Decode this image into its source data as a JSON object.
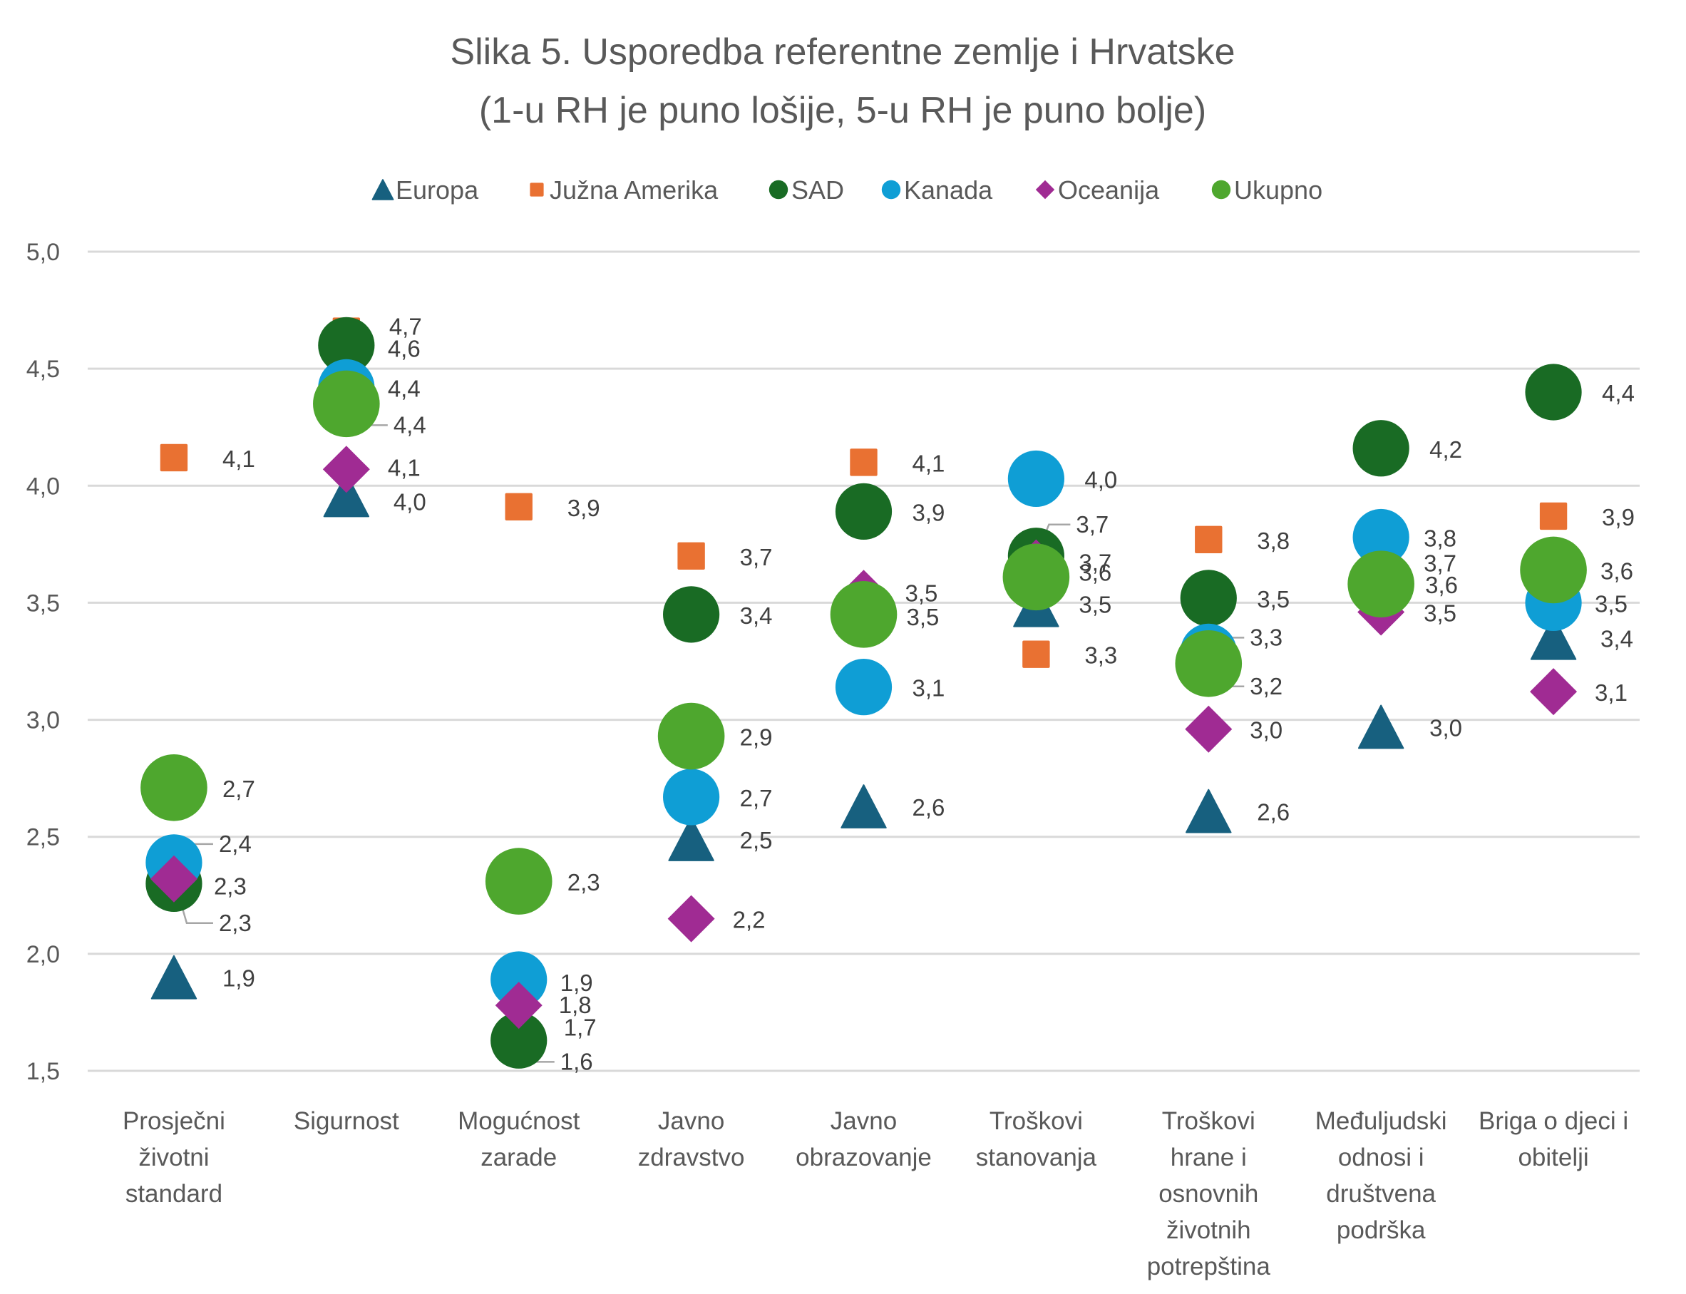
{
  "chart_data": {
    "type": "scatter",
    "title": [
      "Slika 5. Usporedba referentne zemlje i Hrvatske",
      "(1-u RH je puno lošije, 5-u RH je puno bolje)"
    ],
    "xlabel": "",
    "ylabel": "",
    "ylim": [
      1.5,
      5.0
    ],
    "yticks": [
      "5,0",
      "4,5",
      "4,0",
      "3,5",
      "3,0",
      "2,5",
      "2,0",
      "1,5"
    ],
    "ytick_values": [
      5.0,
      4.5,
      4.0,
      3.5,
      3.0,
      2.5,
      2.0,
      1.5
    ],
    "grid": true,
    "legend_position": "top",
    "categories": [
      [
        "Prosječni",
        "životni",
        "standard"
      ],
      [
        "Sigurnost"
      ],
      [
        "Mogućnost",
        "zarade"
      ],
      [
        "Javno",
        "zdravstvo"
      ],
      [
        "Javno",
        "obrazovanje"
      ],
      [
        "Troškovi",
        "stanovanja"
      ],
      [
        "Troškovi",
        "hrane i",
        "osnovnih",
        "životnih",
        "potrepština"
      ],
      [
        "Međuljudski",
        "odnosi i",
        "društvena",
        "podrška"
      ],
      [
        "Briga o djeci i",
        "obitelji"
      ]
    ],
    "series": [
      {
        "name": "Europa",
        "marker": "triangle",
        "color": "#17607f",
        "values": [
          1.9,
          3.96,
          1.66,
          2.49,
          2.63,
          3.49,
          2.61,
          2.97,
          3.35
        ],
        "labels": [
          "1,9",
          "4,0",
          "1,7",
          "2,5",
          "2,6",
          "3,5",
          "2,6",
          "3,0",
          "3,4"
        ]
      },
      {
        "name": "Južna Amerika",
        "marker": "square",
        "color": "#e97132",
        "values": [
          4.12,
          4.66,
          3.91,
          3.7,
          4.1,
          3.28,
          3.77,
          3.68,
          3.87
        ],
        "labels": [
          "4,1",
          "4,7",
          "3,9",
          "3,7",
          "4,1",
          "3,3",
          "3,8",
          "3,7",
          "3,9"
        ]
      },
      {
        "name": "SAD",
        "marker": "circle",
        "color": "#196b24",
        "values": [
          2.3,
          4.6,
          1.63,
          3.45,
          3.89,
          3.7,
          3.52,
          4.16,
          4.4
        ],
        "labels": [
          "2,3",
          "4,6",
          "1,6",
          "3,4",
          "3,9",
          "3,7",
          "3,5",
          "4,2",
          "4,4"
        ]
      },
      {
        "name": "Kanada",
        "marker": "circle",
        "color": "#0f9ed5",
        "values": [
          2.39,
          4.42,
          1.89,
          2.67,
          3.14,
          4.03,
          3.29,
          3.78,
          3.5
        ],
        "labels": [
          "2,4",
          "4,4",
          "1,9",
          "2,7",
          "3,1",
          "4,0",
          "3,3",
          "3,8",
          "3,5"
        ]
      },
      {
        "name": "Oceanija",
        "marker": "diamond",
        "color": "#a02b93",
        "values": [
          2.32,
          4.07,
          1.78,
          2.15,
          3.54,
          3.67,
          2.96,
          3.46,
          3.12
        ],
        "labels": [
          "2,3",
          "4,1",
          "1,8",
          "2,2",
          "3,5",
          "3,7",
          "3,0",
          "3,5",
          "3,1"
        ]
      },
      {
        "name": "Ukupno",
        "marker": "circle-large",
        "color": "#4ea72e",
        "values": [
          2.71,
          4.35,
          2.31,
          2.93,
          3.45,
          3.61,
          3.24,
          3.58,
          3.64
        ],
        "labels": [
          "2,7",
          "4,4",
          "2,3",
          "2,9",
          "3,5",
          "3,6",
          "3,2",
          "3,6",
          "3,6"
        ]
      }
    ]
  }
}
